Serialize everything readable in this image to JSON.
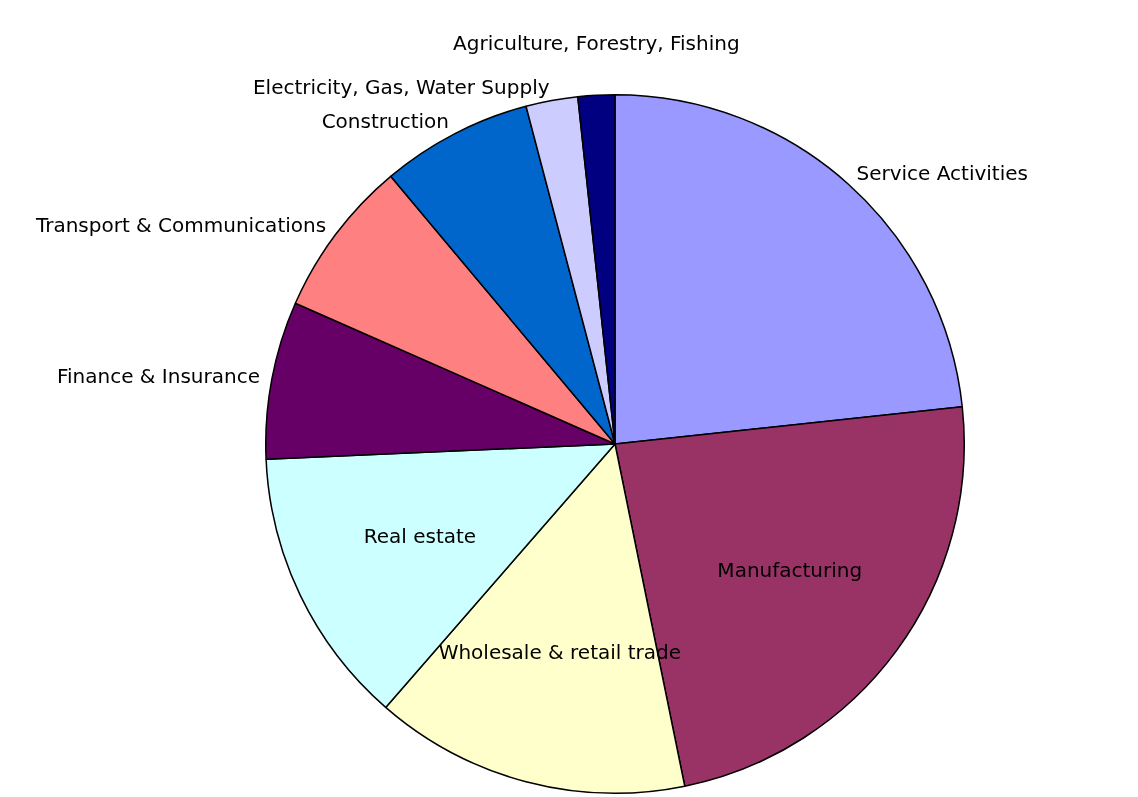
{
  "chart_data": {
    "type": "pie",
    "categories": [
      "Service Activities",
      "Manufacturing",
      "Wholesale & retail trade",
      "Real estate",
      "Finance & Insurance",
      "Transport & Communications",
      "Construction",
      "Electricity, Gas, Water Supply",
      "Agriculture, Forestry, Fishing"
    ],
    "values": [
      23.3,
      23.5,
      14.6,
      12.9,
      7.3,
      7.3,
      7.0,
      2.4,
      1.7
    ],
    "colors": [
      "#9999ff",
      "#993366",
      "#ffffcc",
      "#ccffff",
      "#660066",
      "#ff8080",
      "#0066cc",
      "#ccccff",
      "#000080"
    ],
    "legend": false
  }
}
